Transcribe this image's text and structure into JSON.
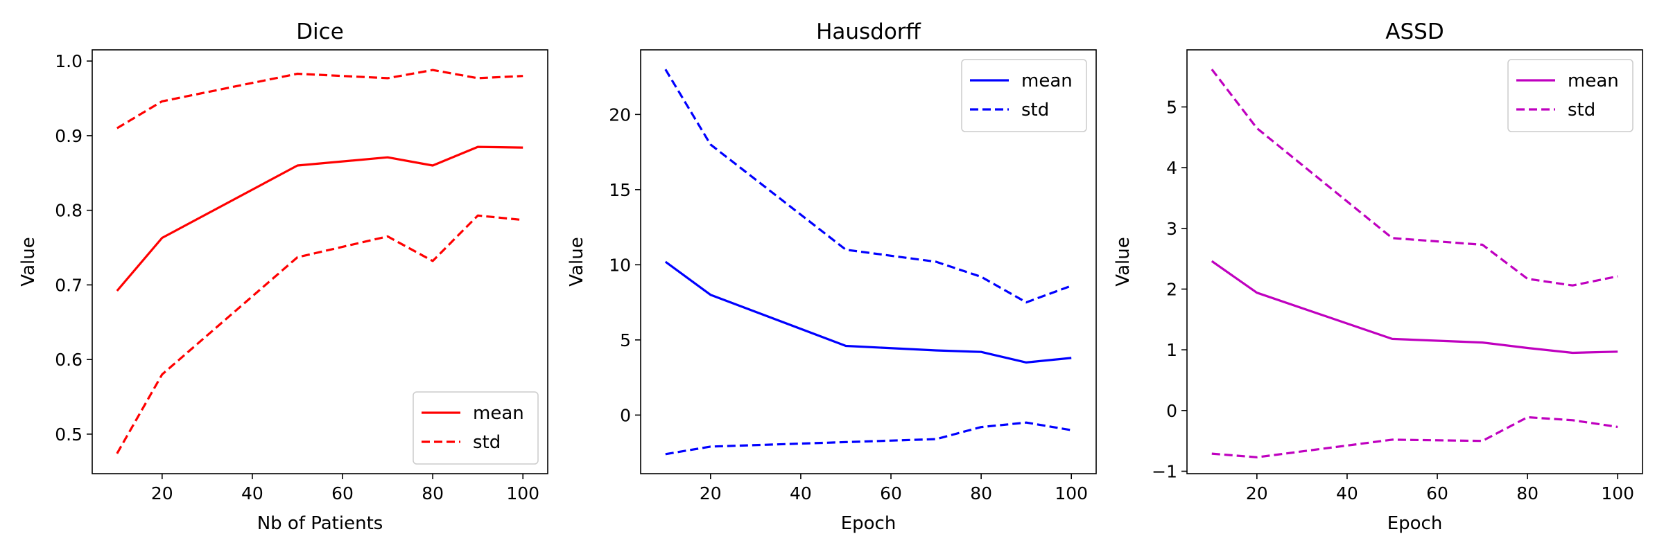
{
  "chart_data": [
    {
      "type": "line",
      "title": "Dice",
      "xlabel": "Nb of Patients",
      "ylabel": "Value",
      "x": [
        10,
        20,
        50,
        70,
        80,
        90,
        100
      ],
      "series": [
        {
          "name": "mean",
          "style": "solid",
          "values": [
            0.692,
            0.763,
            0.86,
            0.871,
            0.86,
            0.885,
            0.884
          ]
        },
        {
          "name": "std",
          "style": "dashed",
          "values": [
            0.91,
            0.946,
            0.983,
            0.977,
            0.988,
            0.977,
            0.98
          ]
        },
        {
          "name": "",
          "style": "dashed",
          "values": [
            0.474,
            0.58,
            0.737,
            0.765,
            0.732,
            0.793,
            0.787
          ]
        }
      ],
      "color": "#ff0000",
      "xlim": [
        4.5,
        105.5
      ],
      "ylim": [
        0.447,
        1.015
      ],
      "xticks": [
        20,
        40,
        60,
        80,
        100
      ],
      "xtick_labels": [
        "20",
        "40",
        "60",
        "80",
        "100"
      ],
      "yticks": [
        0.5,
        0.6,
        0.7,
        0.8,
        0.9,
        1.0
      ],
      "ytick_labels": [
        "0.5",
        "0.6",
        "0.7",
        "0.8",
        "0.9",
        "1.0"
      ],
      "legend_placement": "lower-right",
      "grid": false
    },
    {
      "type": "line",
      "title": "Hausdorff",
      "xlabel": "Epoch",
      "ylabel": "Value",
      "x": [
        10,
        20,
        50,
        70,
        80,
        90,
        100
      ],
      "series": [
        {
          "name": "mean",
          "style": "solid",
          "values": [
            10.2,
            8.0,
            4.6,
            4.3,
            4.2,
            3.5,
            3.8
          ]
        },
        {
          "name": "std",
          "style": "dashed",
          "values": [
            23.0,
            18.0,
            11.0,
            10.2,
            9.2,
            7.5,
            8.6
          ]
        },
        {
          "name": "",
          "style": "dashed",
          "values": [
            -2.6,
            -2.1,
            -1.8,
            -1.6,
            -0.8,
            -0.5,
            -1.0
          ]
        }
      ],
      "color": "#0000ff",
      "xlim": [
        4.5,
        105.5
      ],
      "ylim": [
        -3.9,
        24.3
      ],
      "xticks": [
        20,
        40,
        60,
        80,
        100
      ],
      "xtick_labels": [
        "20",
        "40",
        "60",
        "80",
        "100"
      ],
      "yticks": [
        0,
        5,
        10,
        15,
        20
      ],
      "ytick_labels": [
        "0",
        "5",
        "10",
        "15",
        "20"
      ],
      "legend_placement": "upper-right",
      "grid": false
    },
    {
      "type": "line",
      "title": "ASSD",
      "xlabel": "Epoch",
      "ylabel": "Value",
      "x": [
        10,
        20,
        50,
        70,
        80,
        90,
        100
      ],
      "series": [
        {
          "name": "mean",
          "style": "solid",
          "values": [
            2.46,
            1.94,
            1.18,
            1.12,
            1.03,
            0.95,
            0.97
          ]
        },
        {
          "name": "std",
          "style": "dashed",
          "values": [
            5.62,
            4.65,
            2.84,
            2.73,
            2.17,
            2.06,
            2.21
          ]
        },
        {
          "name": "",
          "style": "dashed",
          "values": [
            -0.71,
            -0.77,
            -0.48,
            -0.5,
            -0.11,
            -0.16,
            -0.27
          ]
        }
      ],
      "color": "#bf00bf",
      "xlim": [
        4.5,
        105.5
      ],
      "ylim": [
        -1.04,
        5.94
      ],
      "xticks": [
        20,
        40,
        60,
        80,
        100
      ],
      "xtick_labels": [
        "20",
        "40",
        "60",
        "80",
        "100"
      ],
      "yticks": [
        -1,
        0,
        1,
        2,
        3,
        4,
        5
      ],
      "ytick_labels": [
        "−1",
        "0",
        "1",
        "2",
        "3",
        "4",
        "5"
      ],
      "legend_placement": "upper-right",
      "grid": false
    }
  ]
}
